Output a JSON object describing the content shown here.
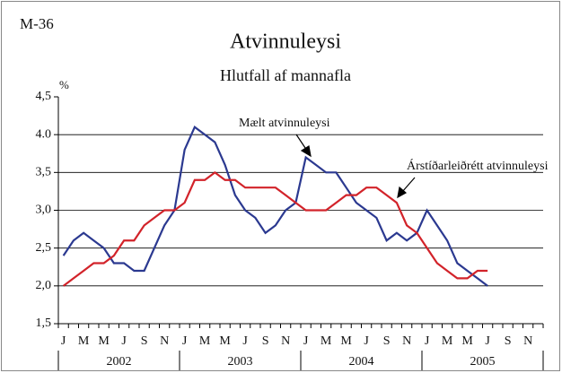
{
  "chart_data": {
    "type": "line",
    "code": "M-36",
    "title": "Atvinnuleysi",
    "subtitle": "Hlutfall af mannafla",
    "y_unit": "%",
    "categories": [
      "J",
      null,
      "M",
      null,
      "M",
      null,
      "J",
      null,
      "S",
      null,
      "N",
      null,
      "J",
      null,
      "M",
      null,
      "M",
      null,
      "J",
      null,
      "S",
      null,
      "N",
      null,
      "J",
      null,
      "M",
      null,
      "M",
      null,
      "J",
      null,
      "S",
      null,
      "N",
      null,
      "J",
      null,
      "M",
      null,
      "M",
      null,
      "J",
      null,
      "S",
      null,
      "N",
      null
    ],
    "years": [
      "2002",
      "2003",
      "2004",
      "2005"
    ],
    "series": [
      {
        "name": "Mælt atvinnuleysi",
        "color": "#2b3990",
        "values": [
          2.4,
          2.6,
          2.7,
          2.6,
          2.5,
          2.3,
          2.3,
          2.2,
          2.2,
          2.5,
          2.8,
          3.0,
          3.8,
          4.1,
          4.0,
          3.9,
          3.6,
          3.2,
          3.0,
          2.9,
          2.7,
          2.8,
          3.0,
          3.1,
          3.7,
          3.6,
          3.5,
          3.5,
          3.3,
          3.1,
          3.0,
          2.9,
          2.6,
          2.7,
          2.6,
          2.7,
          3.0,
          2.8,
          2.6,
          2.3,
          2.2,
          2.1,
          2.0,
          null,
          null,
          null,
          null,
          null
        ]
      },
      {
        "name": "Árstíðarleiðrétt atvinnuleysi",
        "color": "#d2232a",
        "values": [
          2.0,
          2.1,
          2.2,
          2.3,
          2.3,
          2.4,
          2.6,
          2.6,
          2.8,
          2.9,
          3.0,
          3.0,
          3.1,
          3.4,
          3.4,
          3.5,
          3.4,
          3.4,
          3.3,
          3.3,
          3.3,
          3.3,
          3.2,
          3.1,
          3.0,
          3.0,
          3.0,
          3.1,
          3.2,
          3.2,
          3.3,
          3.3,
          3.2,
          3.1,
          2.8,
          2.7,
          2.5,
          2.3,
          2.2,
          2.1,
          2.1,
          2.2,
          2.2,
          null,
          null,
          null,
          null,
          null
        ]
      }
    ],
    "ylim": [
      1.5,
      4.5
    ],
    "yticks": [
      {
        "value": 1.5,
        "label": "1,5"
      },
      {
        "value": 2.0,
        "label": "2,0"
      },
      {
        "value": 2.5,
        "label": "2,5"
      },
      {
        "value": 3.0,
        "label": "3,0"
      },
      {
        "value": 3.5,
        "label": "3,5"
      },
      {
        "value": 4.0,
        "label": "4.0"
      },
      {
        "value": 4.5,
        "label": "4,5"
      }
    ],
    "grid": true
  }
}
